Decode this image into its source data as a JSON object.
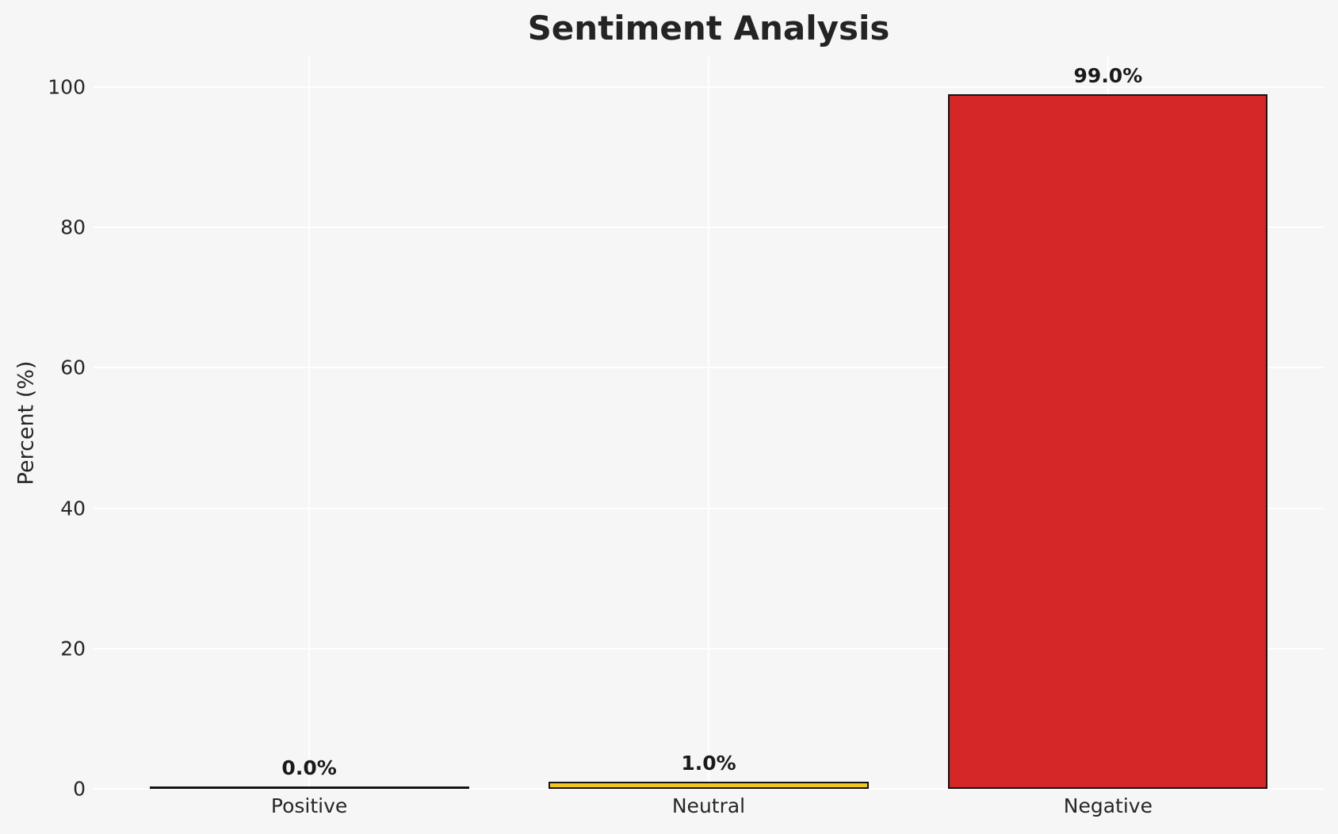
{
  "chart_data": {
    "type": "bar",
    "title": "Sentiment Analysis",
    "xlabel": "",
    "ylabel": "Percent (%)",
    "categories": [
      "Positive",
      "Neutral",
      "Negative"
    ],
    "values": [
      0.0,
      1.0,
      99.0
    ],
    "value_labels": [
      "0.0%",
      "1.0%",
      "99.0%"
    ],
    "bar_colors": [
      null,
      "#F2C71E",
      "#D62728"
    ],
    "bar_edge_color": "#141414",
    "yticks": [
      0,
      20,
      40,
      60,
      80,
      100
    ],
    "ylim": [
      0,
      104.3
    ],
    "grid": true,
    "legend": "none",
    "background_color": "#F6F6F7",
    "grid_color": "#FFFFFF",
    "text_color": "#262626",
    "title_color": "#242424",
    "value_label_color": "#1A1A1A"
  }
}
